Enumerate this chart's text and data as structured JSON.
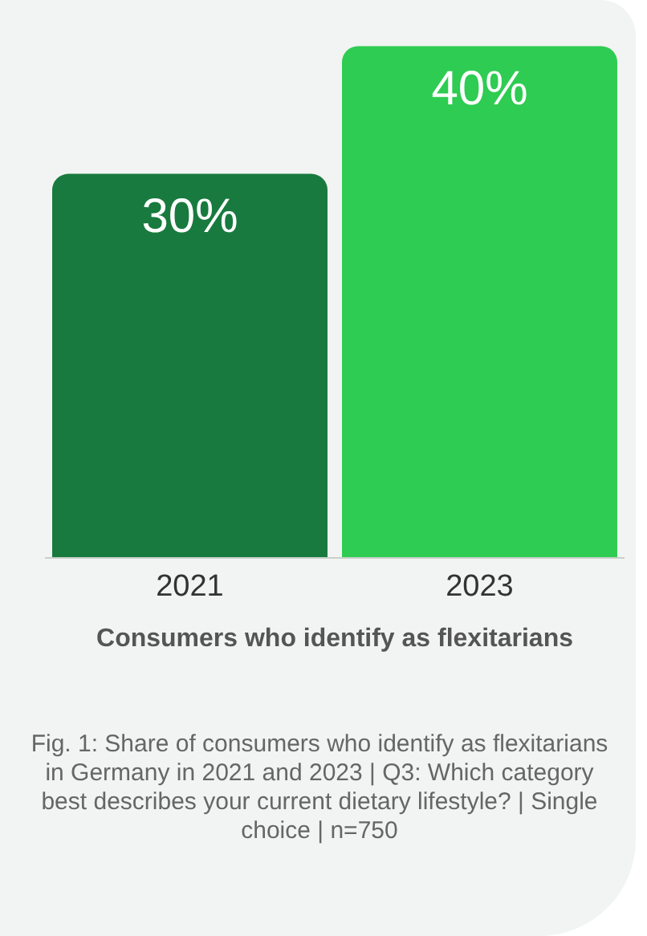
{
  "chart_data": {
    "type": "bar",
    "categories": [
      "2021",
      "2023"
    ],
    "values": [
      30,
      40
    ],
    "colors": [
      "#187a3e",
      "#2ecc52"
    ],
    "value_labels": [
      "30%",
      "40%"
    ],
    "xlabel": "Consumers who identify as flexitarians",
    "annotations": [
      "Fig. 1: Share of consumers who identify as flexitarians in Germany in 2021 and 2023 | Q3: Which category best describes your current dietary lifestyle? | Single choice | n=750"
    ]
  }
}
